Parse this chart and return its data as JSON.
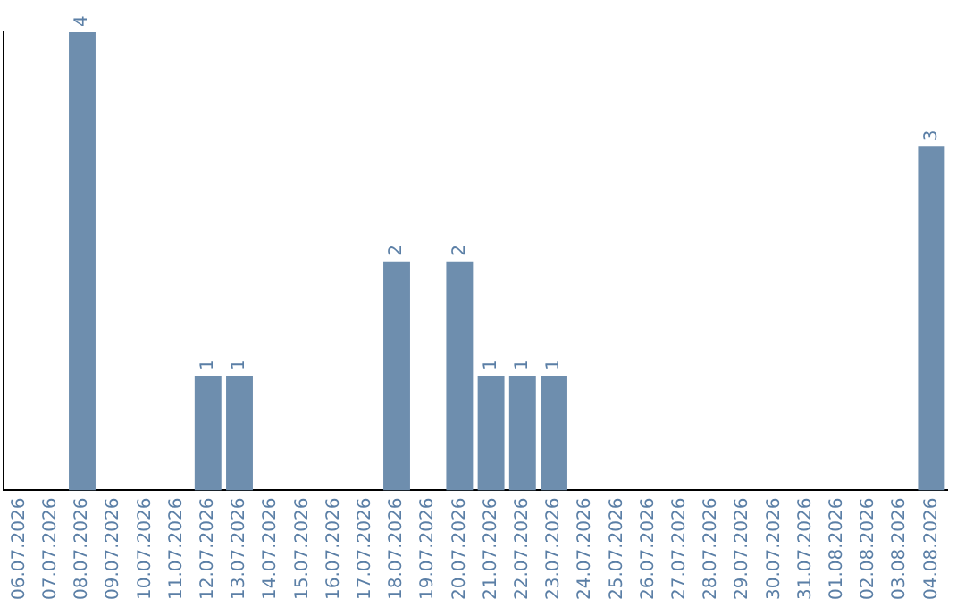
{
  "chart_data": {
    "type": "bar",
    "categories": [
      "06.07.2026",
      "07.07.2026",
      "08.07.2026",
      "09.07.2026",
      "10.07.2026",
      "11.07.2026",
      "12.07.2026",
      "13.07.2026",
      "14.07.2026",
      "15.07.2026",
      "16.07.2026",
      "17.07.2026",
      "18.07.2026",
      "19.07.2026",
      "20.07.2026",
      "21.07.2026",
      "22.07.2026",
      "23.07.2026",
      "24.07.2026",
      "25.07.2026",
      "26.07.2026",
      "27.07.2026",
      "28.07.2026",
      "29.07.2026",
      "30.07.2026",
      "31.07.2026",
      "01.08.2026",
      "02.08.2026",
      "03.08.2026",
      "04.08.2026"
    ],
    "values": [
      0,
      0,
      4,
      0,
      0,
      0,
      1,
      1,
      0,
      0,
      0,
      0,
      2,
      0,
      2,
      1,
      1,
      1,
      0,
      0,
      0,
      0,
      0,
      0,
      0,
      0,
      0,
      0,
      0,
      3
    ],
    "value_labels": [
      null,
      null,
      "4",
      null,
      null,
      null,
      "1",
      "1",
      null,
      null,
      null,
      null,
      "2",
      null,
      "2",
      "1",
      "1",
      "1",
      null,
      null,
      null,
      null,
      null,
      null,
      null,
      null,
      null,
      null,
      null,
      "3"
    ],
    "color": "#6e8eae",
    "grid": false,
    "legend": false,
    "tick_labels": "x"
  }
}
